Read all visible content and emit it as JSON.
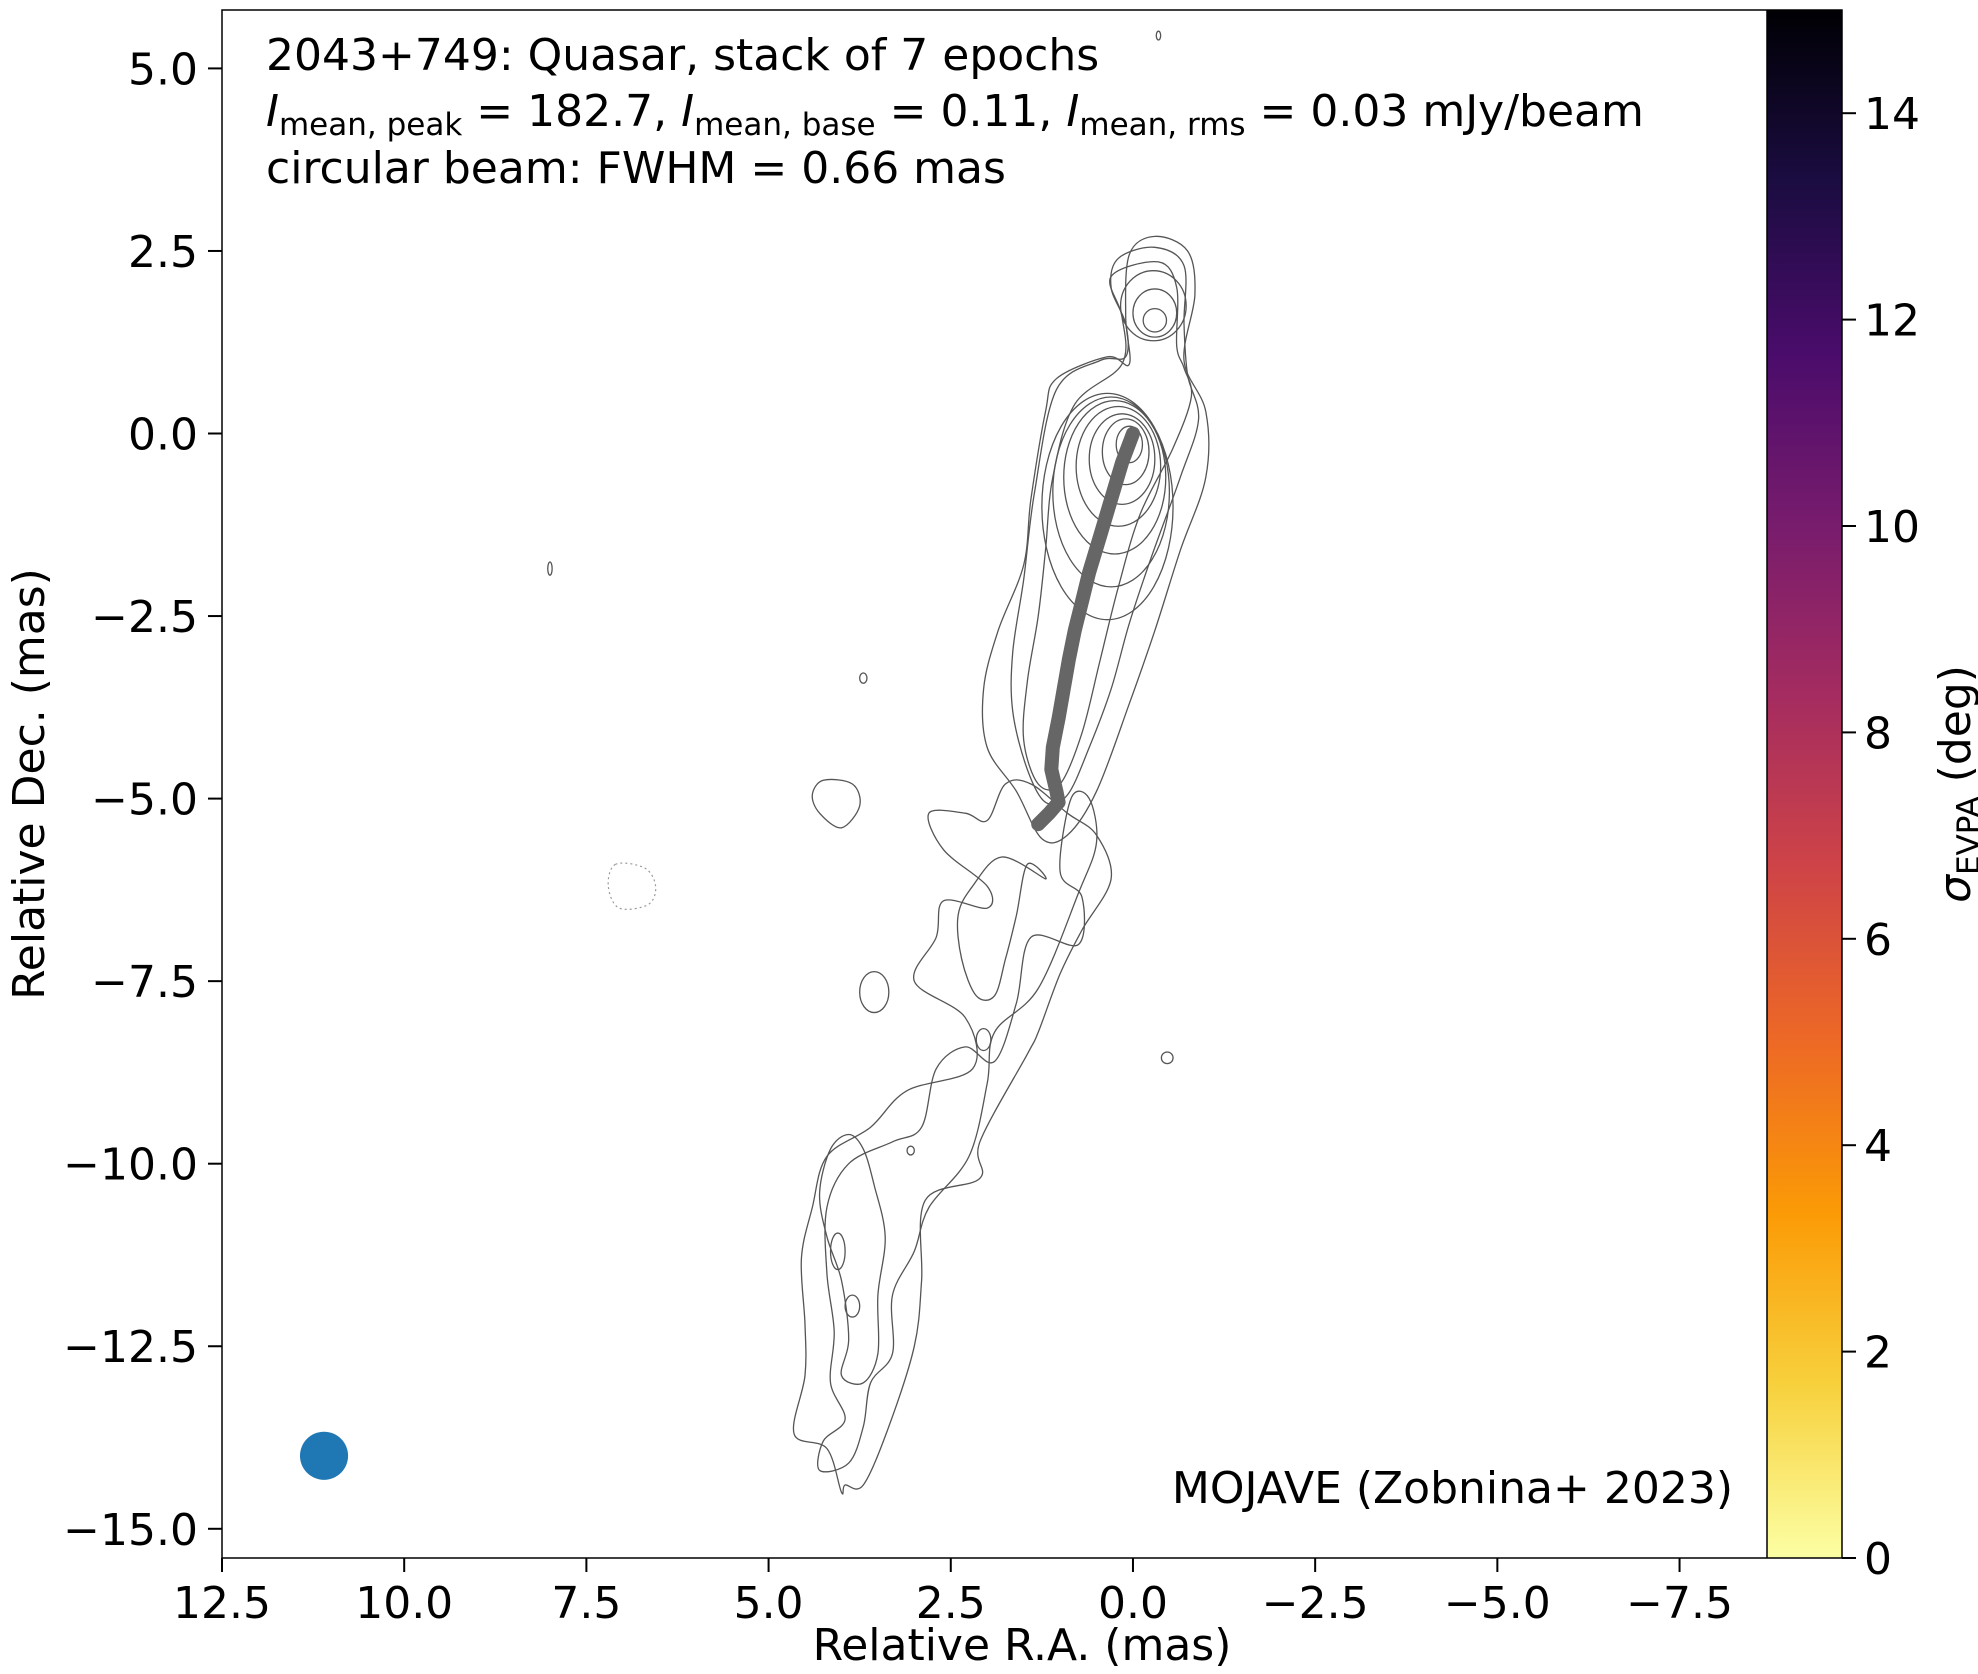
{
  "chart_data": {
    "type": "contour",
    "title_lines": [
      {
        "parts": [
          {
            "t": "2043+749: Quasar, stack of 7 epochs"
          }
        ]
      },
      {
        "parts": [
          {
            "t": "I",
            "style": "italic"
          },
          {
            "t": "mean, peak",
            "style": "sub"
          },
          {
            "t": " = 182.7, "
          },
          {
            "t": "I",
            "style": "italic"
          },
          {
            "t": "mean, base",
            "style": "sub"
          },
          {
            "t": " = 0.11, "
          },
          {
            "t": "I",
            "style": "italic"
          },
          {
            "t": "mean, rms",
            "style": "sub"
          },
          {
            "t": " = 0.03 mJy/beam"
          }
        ]
      },
      {
        "parts": [
          {
            "t": "circular beam: FWHM = 0.66 mas"
          }
        ]
      }
    ],
    "credit": "MOJAVE (Zobnina+ 2023)",
    "xlabel": "Relative R.A. (mas)",
    "ylabel": "Relative Dec. (mas)",
    "xlim": [
      12.5,
      -8.7
    ],
    "ylim": [
      -15.4,
      5.8
    ],
    "x_ticks": [
      12.5,
      10.0,
      7.5,
      5.0,
      2.5,
      0.0,
      -2.5,
      -5.0,
      -7.5
    ],
    "x_tick_labels": [
      "12.5",
      "10.0",
      "7.5",
      "5.0",
      "2.5",
      "0.0",
      "−2.5",
      "−5.0",
      "−7.5"
    ],
    "y_ticks": [
      5.0,
      2.5,
      0.0,
      -2.5,
      -5.0,
      -7.5,
      -10.0,
      -12.5,
      -15.0
    ],
    "y_tick_labels": [
      "5.0",
      "2.5",
      "0.0",
      "−2.5",
      "−5.0",
      "−7.5",
      "−10.0",
      "−12.5",
      "−15.0"
    ],
    "colorbar": {
      "label_symbol": "σ",
      "label_sub": "EVPA",
      "label_unit": " (deg)",
      "range": [
        0,
        15
      ],
      "ticks": [
        0,
        2,
        4,
        6,
        8,
        10,
        12,
        14
      ],
      "colormap": "inferno_r",
      "stops": [
        "#fcffa4",
        "#f7d13d",
        "#fb9b06",
        "#ed6925",
        "#cf4446",
        "#a52c60",
        "#781c6d",
        "#4a0c6b",
        "#1b0c41",
        "#000004"
      ]
    },
    "contour_color": "#555555",
    "ridgeline": {
      "color": "#666666",
      "points": [
        [
          0.0,
          0.0
        ],
        [
          0.15,
          -0.4
        ],
        [
          0.3,
          -0.9
        ],
        [
          0.45,
          -1.4
        ],
        [
          0.6,
          -1.9
        ],
        [
          0.7,
          -2.3
        ],
        [
          0.8,
          -2.7
        ],
        [
          0.88,
          -3.1
        ],
        [
          0.95,
          -3.5
        ],
        [
          1.02,
          -3.9
        ],
        [
          1.1,
          -4.3
        ],
        [
          1.12,
          -4.6
        ],
        [
          1.05,
          -4.9
        ],
        [
          1.02,
          -5.05
        ],
        [
          1.15,
          -5.2
        ],
        [
          1.3,
          -5.35
        ]
      ]
    },
    "beam": {
      "x": 11.1,
      "y": -14.0,
      "fwhm": 0.66,
      "color": "#1f77b4"
    },
    "contours": {
      "core_ellipses": [
        {
          "cx": 0.05,
          "cy": -0.15,
          "rx": 0.18,
          "ry": 0.25,
          "rot": 0
        },
        {
          "cx": 0.1,
          "cy": -0.25,
          "rx": 0.32,
          "ry": 0.45,
          "rot": 0
        },
        {
          "cx": 0.15,
          "cy": -0.35,
          "rx": 0.45,
          "ry": 0.62,
          "rot": 0
        },
        {
          "cx": 0.2,
          "cy": -0.45,
          "rx": 0.58,
          "ry": 0.82,
          "rot": 0
        },
        {
          "cx": 0.25,
          "cy": -0.6,
          "rx": 0.7,
          "ry": 1.05,
          "rot": 0
        },
        {
          "cx": 0.3,
          "cy": -0.8,
          "rx": 0.8,
          "ry": 1.3,
          "rot": 0
        },
        {
          "cx": 0.35,
          "cy": -1.0,
          "rx": 0.9,
          "ry": 1.55,
          "rot": 0
        }
      ],
      "knot_ellipses": [
        {
          "cx": -0.3,
          "cy": 1.55,
          "rx": 0.16,
          "ry": 0.16,
          "rot": 0
        },
        {
          "cx": -0.3,
          "cy": 1.65,
          "rx": 0.3,
          "ry": 0.33,
          "rot": 0
        },
        {
          "cx": -0.28,
          "cy": 1.75,
          "rx": 0.45,
          "ry": 0.48,
          "rot": 0
        },
        {
          "cx": 3.55,
          "cy": -7.65,
          "rx": 0.2,
          "ry": 0.28,
          "rot": 0
        },
        {
          "cx": 2.05,
          "cy": -8.3,
          "rx": 0.1,
          "ry": 0.15,
          "rot": 0
        },
        {
          "cx": 4.05,
          "cy": -11.2,
          "rx": 0.1,
          "ry": 0.25,
          "rot": 0
        },
        {
          "cx": 3.85,
          "cy": -11.95,
          "rx": 0.1,
          "ry": 0.15,
          "rot": 0
        },
        {
          "cx": 3.05,
          "cy": -9.82,
          "rx": 0.05,
          "ry": 0.06,
          "rot": 0
        },
        {
          "cx": -0.47,
          "cy": -8.55,
          "rx": 0.08,
          "ry": 0.08,
          "rot": 0
        },
        {
          "cx": 3.7,
          "cy": -3.35,
          "rx": 0.05,
          "ry": 0.07,
          "rot": 0
        },
        {
          "cx": 8.0,
          "cy": -1.85,
          "rx": 0.03,
          "ry": 0.09,
          "rot": 0
        },
        {
          "cx": -0.35,
          "cy": 5.45,
          "rx": 0.03,
          "ry": 0.06,
          "rot": 0
        }
      ],
      "jet_polygons": [
        [
          [
            -0.6,
            1.2
          ],
          [
            -0.6,
            2.0
          ],
          [
            -0.35,
            2.35
          ],
          [
            0.3,
            2.15
          ],
          [
            0.15,
            1.6
          ],
          [
            0.15,
            0.95
          ],
          [
            0.8,
            0.4
          ],
          [
            1.1,
            -0.6
          ],
          [
            1.2,
            -1.6
          ],
          [
            1.3,
            -2.5
          ],
          [
            1.45,
            -3.4
          ],
          [
            1.5,
            -4.2
          ],
          [
            1.3,
            -4.8
          ],
          [
            1.0,
            -4.8
          ],
          [
            0.7,
            -4.1
          ],
          [
            0.45,
            -3.1
          ],
          [
            0.2,
            -2.1
          ],
          [
            -0.1,
            -1.1
          ],
          [
            -0.55,
            -0.2
          ],
          [
            -0.8,
            0.5
          ],
          [
            -0.7,
            0.9
          ]
        ],
        [
          [
            -0.75,
            0.8
          ],
          [
            -0.9,
            0.2
          ],
          [
            -0.65,
            -0.6
          ],
          [
            -0.25,
            -1.7
          ],
          [
            0.05,
            -2.6
          ],
          [
            0.3,
            -3.5
          ],
          [
            0.6,
            -4.3
          ],
          [
            0.9,
            -4.95
          ],
          [
            1.2,
            -5.05
          ],
          [
            1.45,
            -4.6
          ],
          [
            1.65,
            -3.8
          ],
          [
            1.65,
            -3.0
          ],
          [
            1.5,
            -2.0
          ],
          [
            1.35,
            -0.8
          ],
          [
            1.05,
            0.6
          ],
          [
            0.45,
            1.0
          ],
          [
            0.1,
            1.05
          ],
          [
            0.1,
            1.5
          ],
          [
            0.3,
            2.0
          ],
          [
            0.2,
            2.4
          ],
          [
            -0.3,
            2.55
          ],
          [
            -0.7,
            2.3
          ],
          [
            -0.7,
            1.5
          ]
        ],
        [
          [
            -1.0,
            0.3
          ],
          [
            -1.0,
            -0.6
          ],
          [
            -0.65,
            -1.6
          ],
          [
            -0.3,
            -2.7
          ],
          [
            0.05,
            -3.7
          ],
          [
            0.5,
            -4.9
          ],
          [
            0.9,
            -5.5
          ],
          [
            1.25,
            -5.55
          ],
          [
            1.6,
            -4.9
          ],
          [
            2.0,
            -4.3
          ],
          [
            2.05,
            -3.5
          ],
          [
            1.85,
            -2.7
          ],
          [
            1.5,
            -1.8
          ],
          [
            1.4,
            -0.9
          ],
          [
            1.2,
            0.3
          ],
          [
            1.05,
            0.75
          ],
          [
            0.35,
            1.05
          ],
          [
            0.05,
            0.95
          ],
          [
            0.1,
            1.6
          ],
          [
            0.05,
            2.45
          ],
          [
            -0.3,
            2.7
          ],
          [
            -0.75,
            2.5
          ],
          [
            -0.85,
            1.9
          ],
          [
            -0.7,
            1.0
          ]
        ],
        [
          [
            0.85,
            -5.0
          ],
          [
            1.0,
            -6.0
          ],
          [
            0.7,
            -6.35
          ],
          [
            0.75,
            -7.0
          ],
          [
            1.4,
            -6.9
          ],
          [
            1.6,
            -7.8
          ],
          [
            1.9,
            -8.6
          ],
          [
            2.3,
            -8.4
          ],
          [
            2.7,
            -8.7
          ],
          [
            2.9,
            -9.5
          ],
          [
            3.3,
            -9.7
          ],
          [
            3.9,
            -10.0
          ],
          [
            4.2,
            -10.6
          ],
          [
            4.2,
            -11.5
          ],
          [
            4.1,
            -12.3
          ],
          [
            4.15,
            -13.0
          ],
          [
            3.95,
            -13.5
          ],
          [
            4.25,
            -13.8
          ],
          [
            4.3,
            -14.2
          ],
          [
            3.9,
            -14.1
          ],
          [
            3.7,
            -13.6
          ],
          [
            3.6,
            -13.0
          ],
          [
            3.3,
            -12.6
          ],
          [
            3.3,
            -11.8
          ],
          [
            3.0,
            -11.2
          ],
          [
            2.8,
            -10.6
          ],
          [
            2.25,
            -9.9
          ],
          [
            2.0,
            -8.9
          ],
          [
            1.9,
            -8.2
          ],
          [
            1.3,
            -7.6
          ],
          [
            0.75,
            -6.3
          ],
          [
            0.5,
            -5.6
          ],
          [
            0.6,
            -5.0
          ]
        ],
        [
          [
            2.3,
            -5.2
          ],
          [
            2.8,
            -5.2
          ],
          [
            2.6,
            -5.7
          ],
          [
            2.0,
            -6.2
          ],
          [
            2.0,
            -6.5
          ],
          [
            2.6,
            -6.4
          ],
          [
            2.7,
            -6.9
          ],
          [
            3.0,
            -7.5
          ],
          [
            2.3,
            -8.0
          ],
          [
            2.2,
            -8.7
          ],
          [
            3.1,
            -9.0
          ],
          [
            3.6,
            -9.5
          ],
          [
            4.2,
            -9.9
          ],
          [
            4.4,
            -10.6
          ],
          [
            4.55,
            -11.3
          ],
          [
            4.5,
            -12.2
          ],
          [
            4.5,
            -12.9
          ],
          [
            4.65,
            -13.7
          ],
          [
            4.2,
            -13.9
          ],
          [
            4.0,
            -14.5
          ],
          [
            3.95,
            -14.4
          ],
          [
            3.7,
            -14.4
          ],
          [
            3.35,
            -13.6
          ],
          [
            3.0,
            -12.5
          ],
          [
            2.9,
            -11.6
          ],
          [
            2.85,
            -10.5
          ],
          [
            2.1,
            -10.2
          ],
          [
            2.1,
            -9.7
          ],
          [
            1.45,
            -8.5
          ],
          [
            1.3,
            -8.2
          ],
          [
            1.0,
            -7.4
          ],
          [
            0.7,
            -6.8
          ],
          [
            0.3,
            -6.1
          ],
          [
            0.5,
            -5.5
          ],
          [
            0.9,
            -5.2
          ],
          [
            1.4,
            -4.8
          ],
          [
            1.75,
            -4.8
          ],
          [
            2.0,
            -5.3
          ]
        ],
        [
          [
            4.3,
            -5.2
          ],
          [
            4.0,
            -5.4
          ],
          [
            3.75,
            -5.1
          ],
          [
            3.85,
            -4.8
          ],
          [
            4.25,
            -4.75
          ],
          [
            4.4,
            -4.95
          ]
        ],
        [
          [
            1.2,
            -6.1
          ],
          [
            1.45,
            -5.9
          ],
          [
            1.6,
            -6.6
          ],
          [
            1.75,
            -7.2
          ],
          [
            1.9,
            -7.7
          ],
          [
            2.15,
            -7.7
          ],
          [
            2.35,
            -7.2
          ],
          [
            2.4,
            -6.6
          ],
          [
            2.2,
            -6.2
          ],
          [
            1.8,
            -5.8
          ]
        ],
        [
          [
            3.9,
            -9.6
          ],
          [
            4.15,
            -9.8
          ],
          [
            4.3,
            -10.4
          ],
          [
            4.2,
            -11.0
          ],
          [
            4.0,
            -11.6
          ],
          [
            3.9,
            -12.4
          ],
          [
            4.0,
            -12.9
          ],
          [
            3.7,
            -13.0
          ],
          [
            3.5,
            -12.6
          ],
          [
            3.5,
            -11.8
          ],
          [
            3.4,
            -11.0
          ],
          [
            3.55,
            -10.3
          ],
          [
            3.7,
            -9.8
          ]
        ]
      ],
      "dashed_polygons": [
        [
          [
            7.1,
            -5.9
          ],
          [
            6.7,
            -5.95
          ],
          [
            6.55,
            -6.2
          ],
          [
            6.65,
            -6.45
          ],
          [
            7.05,
            -6.5
          ],
          [
            7.2,
            -6.2
          ]
        ]
      ]
    }
  }
}
